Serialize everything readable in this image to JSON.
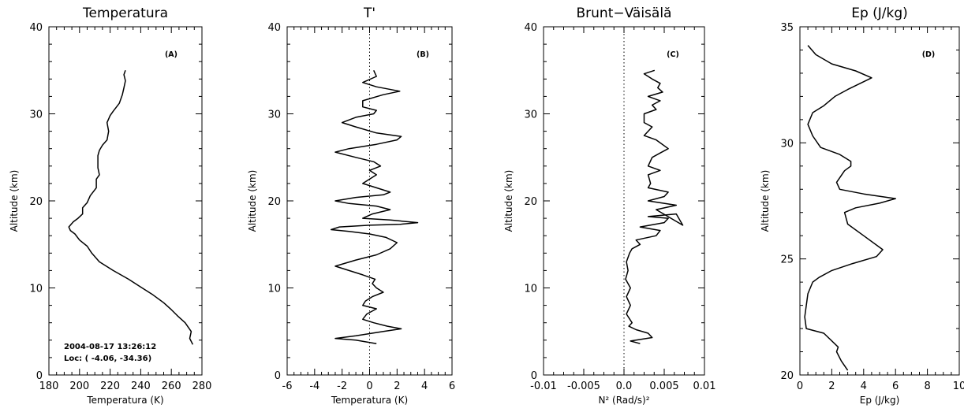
{
  "chart_data": [
    {
      "type": "line",
      "panel_label": "(A)",
      "title": "Temperatura",
      "xlabel": "Temperatura (K)",
      "ylabel": "Altitude (km)",
      "xlim": [
        180,
        280
      ],
      "ylim": [
        0,
        40
      ],
      "xticks": [
        "180",
        "200",
        "220",
        "240",
        "260",
        "280"
      ],
      "yticks": [
        "0",
        "10",
        "20",
        "30",
        "40"
      ],
      "annotations": [
        "2004-08-17 13:26:12",
        "Loc: ( -4.06, -34.36)"
      ],
      "series": [
        {
          "x": [
            274,
            272,
            273,
            271,
            269,
            264,
            260,
            255,
            248,
            240,
            232,
            222,
            213,
            208,
            205,
            200,
            197,
            194,
            193,
            196,
            199,
            202,
            202,
            205,
            207,
            211,
            211,
            213,
            212,
            212,
            212,
            213,
            215,
            218,
            219,
            218,
            220,
            222,
            226,
            228,
            229,
            230,
            229,
            230
          ],
          "y": [
            3.5,
            4.2,
            5,
            5.5,
            6,
            6.8,
            7.5,
            8.3,
            9.2,
            10.1,
            11,
            12,
            13,
            14,
            14.8,
            15.5,
            16.2,
            16.6,
            17,
            17.6,
            18,
            18.5,
            19.2,
            19.8,
            20.6,
            21.5,
            22.5,
            23,
            23.8,
            24.5,
            25.2,
            25.8,
            26.4,
            27,
            28,
            29,
            29.8,
            30.3,
            31.2,
            32.2,
            33,
            33.8,
            34.5,
            35
          ]
        }
      ]
    },
    {
      "type": "line",
      "panel_label": "(B)",
      "title": "T'",
      "xlabel": "Temperatura (K)",
      "ylabel": "Altitude (km)",
      "xlim": [
        -6,
        6
      ],
      "ylim": [
        0,
        40
      ],
      "xticks": [
        "-6",
        "-4",
        "-2",
        "0",
        "2",
        "4",
        "6"
      ],
      "yticks": [
        "0",
        "10",
        "20",
        "30",
        "40"
      ],
      "series": [
        {
          "x": [
            0.5,
            -1,
            -2.5,
            -1,
            1,
            2.3,
            1.3,
            0.3,
            -0.5,
            -0.2,
            0.5,
            -0.5,
            -0.3,
            0.2,
            1,
            0.5,
            0.2,
            0.4,
            -0.5,
            -1.5,
            -2.5,
            -1,
            0.5,
            1.5,
            2,
            1.2,
            0,
            -1.5,
            -2.8,
            -2.2,
            0,
            2.2,
            3.5,
            1.5,
            -0.5,
            0.2,
            1.5,
            0.5,
            -1.5,
            -2.5,
            -1,
            1,
            1.5,
            0.5,
            -0.5,
            0,
            0.5,
            0,
            0.8,
            0.3,
            -1,
            -2.5,
            -1.5,
            0.5,
            2,
            2.3,
            0.5,
            -1,
            -2,
            -1,
            0.3,
            0.5,
            -0.5,
            -0.5,
            1,
            2.2,
            0.5,
            -0.5,
            0.5,
            0.3
          ],
          "y": [
            3.6,
            4,
            4.2,
            4.5,
            5,
            5.3,
            5.6,
            6,
            6.4,
            7,
            7.6,
            8,
            8.5,
            9,
            9.5,
            10,
            10.5,
            11,
            11.5,
            12,
            12.5,
            13.2,
            13.8,
            14.5,
            15.2,
            15.8,
            16.2,
            16.5,
            16.7,
            17,
            17.2,
            17.3,
            17.5,
            17.8,
            18,
            18.5,
            19,
            19.4,
            19.7,
            20,
            20.4,
            20.7,
            21,
            21.5,
            22,
            22.5,
            23,
            23.5,
            24,
            24.5,
            25,
            25.6,
            26,
            26.5,
            27,
            27.4,
            27.8,
            28.5,
            29,
            29.6,
            30,
            30.4,
            30.8,
            31.5,
            32.2,
            32.6,
            33.1,
            33.6,
            34.3,
            35
          ]
        }
      ]
    },
    {
      "type": "line",
      "panel_label": "(C)",
      "title": "Brunt−Väisälă",
      "xlabel": "N² (Rad/s)²",
      "ylabel": "Altitude (km)",
      "xlim": [
        -0.01,
        0.01
      ],
      "ylim": [
        0,
        40
      ],
      "xticks": [
        "-0.01",
        "-0.005",
        "0.0",
        "0.005",
        "0.01"
      ],
      "yticks": [
        "0",
        "10",
        "20",
        "30",
        "40"
      ],
      "series": [
        {
          "x": [
            0.002,
            0.0008,
            0.0035,
            0.003,
            0.0015,
            0.0006,
            0.001,
            0.0003,
            0.0008,
            0.0003,
            0.0008,
            0.0002,
            0.0005,
            0.0003,
            0.0007,
            0.001,
            0.002,
            0.0015,
            0.004,
            0.0045,
            0.002,
            0.005,
            0.0055,
            0.003,
            0.0065,
            0.0073,
            0.004,
            0.0065,
            0.003,
            0.005,
            0.0055,
            0.003,
            0.0033,
            0.003,
            0.0045,
            0.003,
            0.0035,
            0.0045,
            0.0055,
            0.004,
            0.0025,
            0.0035,
            0.0025,
            0.0025,
            0.004,
            0.0035,
            0.0045,
            0.003,
            0.0048,
            0.0042,
            0.0045,
            0.0035,
            0.0025,
            0.0038
          ],
          "y": [
            3.6,
            3.9,
            4.3,
            4.8,
            5.2,
            5.6,
            6,
            7,
            8,
            9,
            10,
            11,
            12,
            13,
            14,
            14.5,
            15,
            15.5,
            16,
            16.6,
            17,
            17.5,
            18,
            18.2,
            18.5,
            17.2,
            19,
            19.5,
            20,
            20.5,
            21,
            21.5,
            22,
            23,
            23.5,
            24,
            25,
            25.5,
            26,
            27,
            27.5,
            28.5,
            29,
            30,
            30.5,
            31,
            31.5,
            32,
            32.5,
            33,
            33.5,
            34,
            34.6,
            35
          ]
        }
      ]
    },
    {
      "type": "line",
      "panel_label": "(D)",
      "title": "Ep (J/kg)",
      "xlabel": "Ep (J/kg)",
      "ylabel": "Altitude (km)",
      "xlim": [
        0,
        10
      ],
      "ylim": [
        20,
        35
      ],
      "xticks": [
        "0",
        "2",
        "4",
        "6",
        "8",
        "10"
      ],
      "yticks": [
        "20",
        "25",
        "30",
        "35"
      ],
      "series": [
        {
          "x": [
            3,
            2.6,
            2.3,
            2.4,
            1.5,
            0.4,
            0.3,
            0.4,
            0.5,
            0.8,
            1.2,
            2,
            3.3,
            4.8,
            5.2,
            4,
            3,
            2.8,
            3.5,
            5,
            6,
            4,
            2.5,
            2.3,
            2.8,
            3.2,
            3.2,
            2.5,
            1.3,
            0.8,
            0.5,
            0.8,
            1.5,
            2.2,
            3,
            4.5,
            3.5,
            2,
            1,
            0.5
          ],
          "y": [
            20.2,
            20.6,
            21,
            21.2,
            21.8,
            22,
            22.5,
            23,
            23.5,
            24,
            24.2,
            24.5,
            24.8,
            25.1,
            25.4,
            26,
            26.5,
            27,
            27.2,
            27.4,
            27.6,
            27.8,
            28,
            28.3,
            28.8,
            29,
            29.2,
            29.5,
            29.8,
            30.3,
            30.8,
            31.3,
            31.6,
            32,
            32.3,
            32.8,
            33.1,
            33.4,
            33.8,
            34.2
          ]
        }
      ]
    }
  ]
}
